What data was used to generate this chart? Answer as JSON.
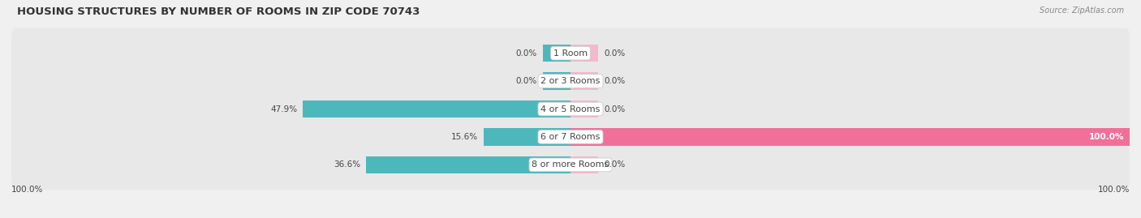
{
  "title": "HOUSING STRUCTURES BY NUMBER OF ROOMS IN ZIP CODE 70743",
  "source": "Source: ZipAtlas.com",
  "categories": [
    "1 Room",
    "2 or 3 Rooms",
    "4 or 5 Rooms",
    "6 or 7 Rooms",
    "8 or more Rooms"
  ],
  "owner_values": [
    0.0,
    0.0,
    47.9,
    15.6,
    36.6
  ],
  "renter_values": [
    0.0,
    0.0,
    0.0,
    100.0,
    0.0
  ],
  "owner_color": "#4db8bc",
  "renter_color": "#f0709a",
  "renter_stub_color": "#f5b8cc",
  "bg_color": "#f0f0f0",
  "row_bg_color": "#e8e8e8",
  "label_color": "#444444",
  "title_color": "#333333",
  "max_val": 100.0,
  "bar_height": 0.62,
  "figsize": [
    14.06,
    2.69
  ],
  "dpi": 100,
  "bottom_labels": [
    "100.0%",
    "100.0%"
  ]
}
